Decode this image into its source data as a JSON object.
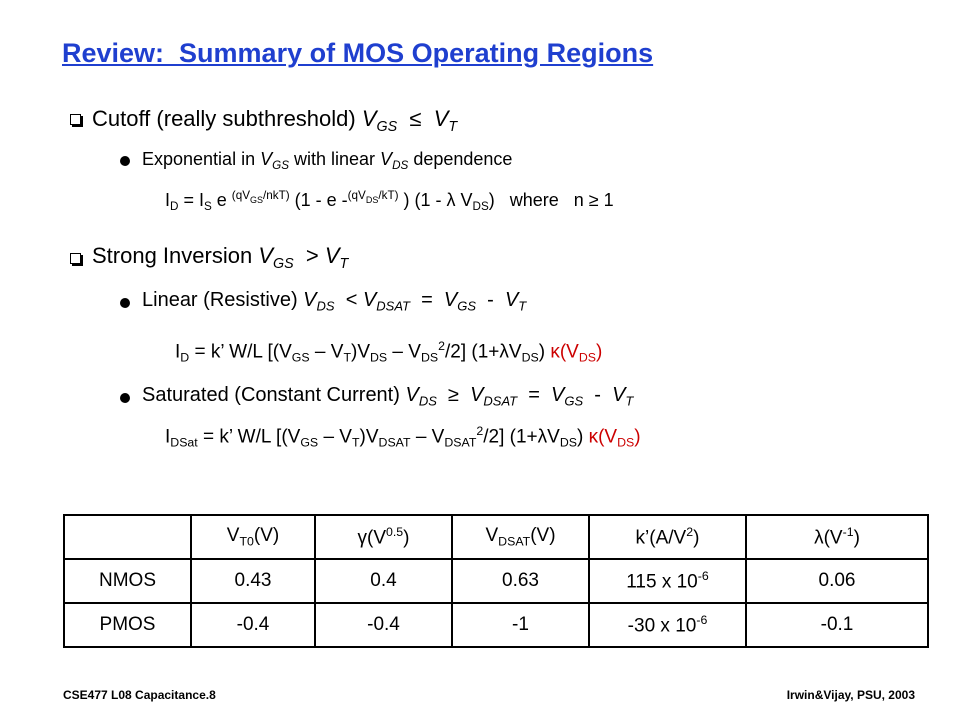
{
  "title": "Review:  Summary of MOS Operating Regions",
  "items": [
    {
      "runs": [
        {
          "text": "Cutoff (really subthreshold) "
        },
        {
          "i": "V"
        },
        {
          "isub": "GS"
        },
        {
          "text": "  ≤  "
        },
        {
          "i": "V"
        },
        {
          "isub": "T"
        }
      ]
    },
    {
      "runs": [
        {
          "text": "Exponential in "
        },
        {
          "i": "V"
        },
        {
          "isub": "GS"
        },
        {
          "text": " with linear "
        },
        {
          "i": "V"
        },
        {
          "isub": "DS"
        },
        {
          "text": " dependence"
        }
      ]
    },
    {
      "runs": [
        {
          "text": "I"
        },
        {
          "sub": "D"
        },
        {
          "text": " = I"
        },
        {
          "sub": "S"
        },
        {
          "text": " e "
        },
        {
          "sup": "(qV"
        },
        {
          "ssub": "GS"
        },
        {
          "sup": "/nkT)"
        },
        {
          "text": " (1 - e -"
        },
        {
          "sup": "(qV"
        },
        {
          "ssub": "DS"
        },
        {
          "sup": "/kT)"
        },
        {
          "text": " ) (1 - λ V"
        },
        {
          "sub": "DS"
        },
        {
          "text": ")   where   n ≥ 1"
        }
      ]
    },
    {
      "runs": [
        {
          "text": "Strong Inversion "
        },
        {
          "i": "V"
        },
        {
          "isub": "GS"
        },
        {
          "text": "  > "
        },
        {
          "i": "V"
        },
        {
          "isub": "T"
        }
      ]
    },
    {
      "runs": [
        {
          "text": "Linear (Resistive) "
        },
        {
          "i": "V"
        },
        {
          "isub": "DS"
        },
        {
          "text": "  < "
        },
        {
          "i": "V"
        },
        {
          "isub": "DSAT"
        },
        {
          "text": "  =  "
        },
        {
          "i": "V"
        },
        {
          "isub": "GS"
        },
        {
          "text": "  -  "
        },
        {
          "i": "V"
        },
        {
          "isub": "T"
        }
      ]
    },
    {
      "runs": [
        {
          "text": "I"
        },
        {
          "sub": "D"
        },
        {
          "text": " = k’ W/L [(V"
        },
        {
          "sub": "GS"
        },
        {
          "text": " – V"
        },
        {
          "sub": "T"
        },
        {
          "text": ")V"
        },
        {
          "sub": "DS"
        },
        {
          "text": " – V"
        },
        {
          "sub": "DS"
        },
        {
          "sup": "2"
        },
        {
          "text": "/2] (1+λV"
        },
        {
          "sub": "DS"
        },
        {
          "text": ") "
        },
        {
          "red": "κ(V"
        },
        {
          "redsub": "DS"
        },
        {
          "red": ")"
        }
      ]
    },
    {
      "runs": [
        {
          "text": "Saturated (Constant Current) "
        },
        {
          "i": "V"
        },
        {
          "isub": "DS"
        },
        {
          "text": "  ≥  "
        },
        {
          "i": "V"
        },
        {
          "isub": "DSAT"
        },
        {
          "text": "  =  "
        },
        {
          "i": "V"
        },
        {
          "isub": "GS"
        },
        {
          "text": "  -  "
        },
        {
          "i": "V"
        },
        {
          "isub": "T"
        }
      ]
    },
    {
      "runs": [
        {
          "text": "I"
        },
        {
          "sub": "DSat"
        },
        {
          "text": " = k’ W/L [(V"
        },
        {
          "sub": "GS"
        },
        {
          "text": " – V"
        },
        {
          "sub": "T"
        },
        {
          "text": ")V"
        },
        {
          "sub": "DSAT"
        },
        {
          "text": " – V"
        },
        {
          "sub": "DSAT"
        },
        {
          "sup": "2"
        },
        {
          "text": "/2] (1+λV"
        },
        {
          "sub": "DS"
        },
        {
          "text": ") "
        },
        {
          "red": "κ(V"
        },
        {
          "redsub": "DS"
        },
        {
          "red": ")"
        }
      ]
    }
  ],
  "table": {
    "header": [
      [
        {
          "text": "V"
        },
        {
          "sub": "T0"
        },
        {
          "text": "(V)"
        }
      ],
      [
        {
          "text": "γ(V"
        },
        {
          "sup": "0.5"
        },
        {
          "text": ")"
        }
      ],
      [
        {
          "text": "V"
        },
        {
          "sub": "DSAT"
        },
        {
          "text": "(V)"
        }
      ],
      [
        {
          "text": "k’(A/V"
        },
        {
          "sup": "2"
        },
        {
          "text": ")"
        }
      ],
      [
        {
          "text": "λ(V"
        },
        {
          "sup": "-1"
        },
        {
          "text": ")"
        }
      ]
    ],
    "rows": [
      [
        [
          {
            "text": "NMOS"
          }
        ],
        [
          {
            "text": "0.43"
          }
        ],
        [
          {
            "text": "0.4"
          }
        ],
        [
          {
            "text": "0.63"
          }
        ],
        [
          {
            "text": "115 x 10"
          },
          {
            "sup": "-6"
          }
        ],
        [
          {
            "text": "0.06"
          }
        ]
      ],
      [
        [
          {
            "text": "PMOS"
          }
        ],
        [
          {
            "text": "-0.4"
          }
        ],
        [
          {
            "text": "-0.4"
          }
        ],
        [
          {
            "text": "-1"
          }
        ],
        [
          {
            "text": "-30 x 10"
          },
          {
            "sup": "-6"
          }
        ],
        [
          {
            "text": "-0.1"
          }
        ]
      ]
    ]
  },
  "footer": {
    "left": "CSE477  L08 Capacitance.8",
    "right": "Irwin&Vijay, PSU, 2003"
  }
}
